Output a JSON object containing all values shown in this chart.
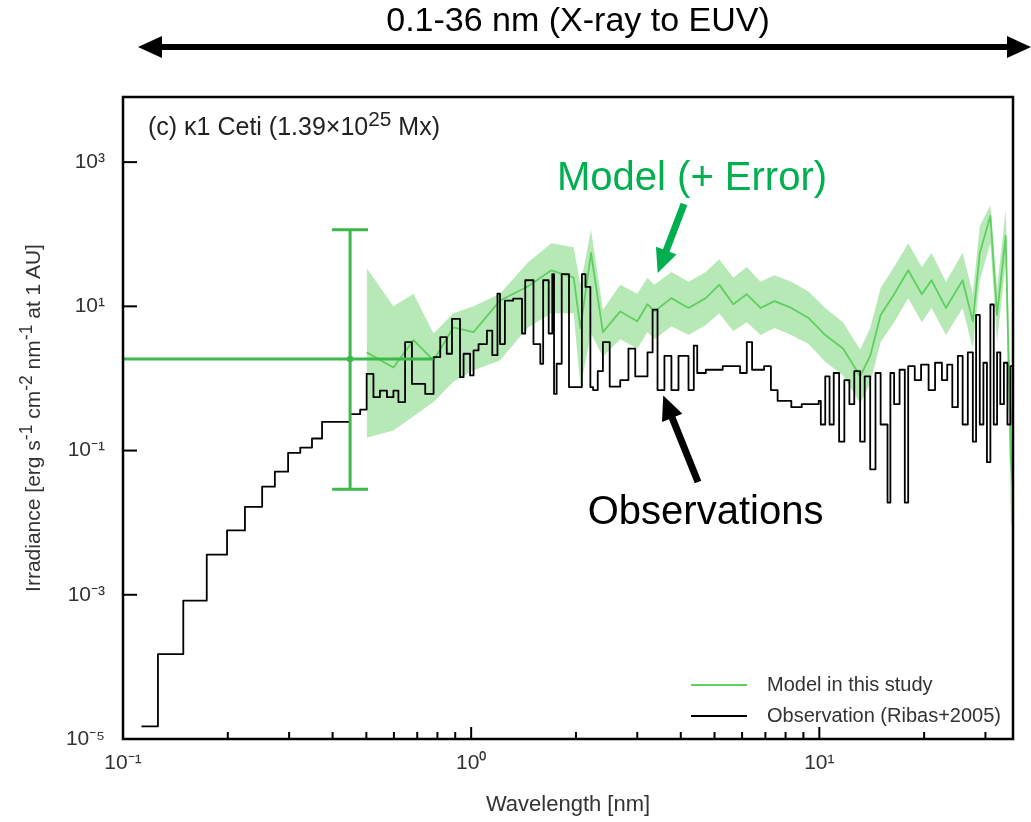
{
  "chart_data": {
    "type": "line",
    "title": "(c) κ1 Ceti (1.39×10$^{25}$ Mx)",
    "xlabel": "Wavelength [nm]",
    "ylabel": "Irradiance [erg s$^{-1}$ cm$^{-2}$ nm$^{-1}$ at 1 AU]",
    "log": "xy",
    "xlim": [
      0.1,
      36
    ],
    "xticks": [
      {
        "value": 0.1,
        "label": "10⁻¹"
      },
      {
        "value": 0.2,
        "label": null
      },
      {
        "value": 0.3,
        "label": null
      },
      {
        "value": 0.4,
        "label": null
      },
      {
        "value": 0.5,
        "label": null
      },
      {
        "value": 0.6,
        "label": null
      },
      {
        "value": 0.7,
        "label": null
      },
      {
        "value": 0.8,
        "label": null
      },
      {
        "value": 0.9,
        "label": null
      },
      {
        "value": 1,
        "label": "10⁰"
      },
      {
        "value": 2,
        "label": null
      },
      {
        "value": 3,
        "label": null
      },
      {
        "value": 4,
        "label": null
      },
      {
        "value": 5,
        "label": null
      },
      {
        "value": 6,
        "label": null
      },
      {
        "value": 7,
        "label": null
      },
      {
        "value": 8,
        "label": null
      },
      {
        "value": 9,
        "label": null
      },
      {
        "value": 10,
        "label": "10¹"
      },
      {
        "value": 20,
        "label": null
      },
      {
        "value": 30,
        "label": null
      }
    ],
    "ylim": [
      1e-05,
      8000
    ],
    "yticks": [
      {
        "value": 1e-05,
        "label": "10⁻⁵"
      },
      {
        "value": 0.001,
        "label": "10⁻³"
      },
      {
        "value": 0.1,
        "label": "10⁻¹"
      },
      {
        "value": 10,
        "label": "10¹"
      },
      {
        "value": 1000,
        "label": "10³"
      }
    ],
    "legend": "bottom right",
    "marker": "none",
    "annotations": [
      "0.1-36 nm (X-ray to EUV)",
      {
        "text": "Model (+ Error)",
        "x": 3.2,
        "y": 12
      },
      {
        "text": "Observations",
        "x": 3.5,
        "y": 0.69
      }
    ],
    "series": [
      {
        "name": "Model in this study",
        "color": "#5fcf5f",
        "x": [
          0.501,
          0.598,
          0.683,
          0.78,
          0.889,
          1.016,
          1.21,
          1.45,
          1.7,
          1.97,
          2.06,
          2.21,
          2.39,
          2.68,
          3.0,
          3.21,
          3.36,
          3.76,
          4.21,
          4.72,
          5.16,
          5.66,
          6.19,
          6.78,
          7.43,
          8.31,
          9.31,
          10.4,
          11.7,
          13.1,
          14.0,
          15.0,
          16.4,
          18.0,
          19.7,
          21.0,
          23.1,
          25.8,
          27.6,
          28.9,
          31.0,
          32.4,
          34.3,
          35.5,
          36
        ],
        "values": [
          2.3,
          1.42,
          3.4,
          1.78,
          5.1,
          4.4,
          12,
          18.7,
          31.6,
          25,
          5,
          55,
          4.4,
          8.5,
          6.2,
          10.7,
          8.5,
          13,
          9.5,
          13,
          20,
          10.7,
          14.7,
          9.5,
          11.8,
          9.5,
          6.9,
          4.0,
          2.6,
          1.07,
          2.05,
          7.6,
          14.7,
          31.6,
          14.7,
          23,
          9.5,
          23,
          6.2,
          55,
          180,
          7.6,
          95,
          0.077,
          0.03
        ],
        "lower": [
          0.15,
          0.19,
          0.3,
          0.47,
          0.9,
          1.3,
          1.78,
          5,
          8,
          8,
          0.75,
          4.2,
          2,
          3.5,
          2.6,
          4.4,
          3.5,
          5.3,
          4,
          5.5,
          8,
          4.5,
          6,
          4,
          5,
          4,
          3,
          1.7,
          1.1,
          0.45,
          0.85,
          3.2,
          6,
          13,
          6,
          9.5,
          4,
          9.5,
          2.6,
          23,
          75,
          3.2,
          40,
          0.01,
          0.008
        ],
        "upper": [
          34,
          10,
          15,
          4.2,
          8,
          10,
          15,
          40,
          75,
          66,
          20,
          115,
          9,
          20,
          15,
          25,
          20,
          30,
          22,
          30,
          45,
          25,
          35,
          22,
          27,
          22,
          16,
          9.5,
          6,
          2.5,
          5,
          18,
          35,
          75,
          35,
          55,
          22,
          55,
          15,
          130,
          250,
          18,
          220,
          0.5,
          0.2
        ]
      },
      {
        "name": "Observation (Ribas+2005)",
        "type": "step",
        "color": "#000000",
        "x": [
          0.113,
          0.126,
          0.149,
          0.174,
          0.199,
          0.224,
          0.251,
          0.273,
          0.298,
          0.323,
          0.349,
          0.373,
          0.449,
          0.48,
          0.501,
          0.524,
          0.547,
          0.573,
          0.598,
          0.618,
          0.646,
          0.676,
          0.738,
          0.78,
          0.815,
          0.851,
          0.881,
          0.929,
          0.951,
          0.993,
          1.016,
          1.05,
          1.11,
          1.15,
          1.19,
          1.21,
          1.25,
          1.32,
          1.4,
          1.43,
          1.51,
          1.58,
          1.61,
          1.67,
          1.71,
          1.73,
          1.76,
          1.82,
          1.91,
          2.08,
          2.13,
          2.2,
          2.24,
          2.31,
          2.39,
          2.5,
          2.68,
          2.83,
          2.96,
          3.21,
          3.32,
          3.43,
          3.59,
          3.76,
          3.94,
          4.21,
          4.36,
          4.46,
          4.72,
          5.28,
          5.92,
          6.19,
          6.41,
          6.94,
          7.26,
          7.59,
          8.31,
          8.9,
          9.96,
          10.1,
          10.4,
          10.7,
          11.0,
          11.4,
          11.8,
          12.2,
          12.6,
          13.1,
          13.5,
          14.0,
          14.5,
          15.0,
          15.7,
          16.0,
          16.4,
          17.0,
          17.6,
          18.0,
          18.8,
          19.6,
          20.6,
          21.5,
          22.5,
          23.3,
          24.1,
          25.0,
          25.8,
          26.7,
          27.6,
          28.2,
          28.9,
          29.6,
          30.3,
          31.0,
          31.7,
          32.4,
          33.1,
          33.9,
          34.7,
          35.4,
          36
        ],
        "values": [
          1.5e-05,
          0.00015,
          0.00083,
          0.0036,
          0.0078,
          0.0166,
          0.0316,
          0.051,
          0.093,
          0.11,
          0.147,
          0.25,
          0.32,
          0.37,
          1.16,
          0.55,
          0.68,
          0.55,
          0.68,
          0.47,
          3.2,
          0.84,
          0.61,
          1.98,
          3.75,
          2.2,
          6.7,
          1.04,
          2.2,
          1.1,
          2.45,
          3.0,
          4.6,
          2.1,
          15,
          3.0,
          12,
          12.8,
          4.2,
          23,
          3.0,
          1.6,
          23,
          4.2,
          28,
          0.61,
          1.6,
          28,
          0.76,
          28,
          18.6,
          0.76,
          0.69,
          1.26,
          3.2,
          0.77,
          0.95,
          2.6,
          1.07,
          2.3,
          9.0,
          0.69,
          2.05,
          0.69,
          2.05,
          0.69,
          2.85,
          1.19,
          1.32,
          1.48,
          1.19,
          3.2,
          1.32,
          1.48,
          0.69,
          0.49,
          0.4,
          0.44,
          0.49,
          0.23,
          1.07,
          0.23,
          1.19,
          0.133,
          0.95,
          0.44,
          1.26,
          0.133,
          1.07,
          0.055,
          1.19,
          0.23,
          0.019,
          1.19,
          0.44,
          1.32,
          0.019,
          1.48,
          0.95,
          1.56,
          0.69,
          1.65,
          0.95,
          1.56,
          0.4,
          2.05,
          0.23,
          2.3,
          0.133,
          7.6,
          0.23,
          1.65,
          0.069,
          10.6,
          0.23,
          2.3,
          0.44,
          1.65,
          0.23,
          1.48,
          1.48
        ]
      },
      {
        "type": "scatter",
        "marker": "circle",
        "color": "#3cb94a",
        "x": [
          0.449
        ],
        "values": [
          1.86
        ],
        "errors": [
          [
            0.029,
            115
          ]
        ],
        "xerrors": [
          [
            0.1,
            0.78
          ]
        ]
      }
    ]
  }
}
